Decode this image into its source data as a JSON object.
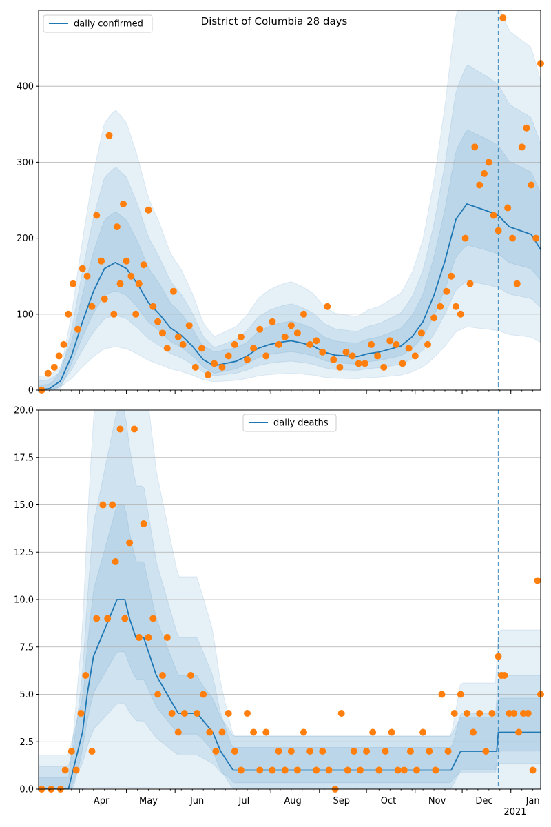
{
  "colors": {
    "line": "#1f77b4",
    "points": "#ff7f0e",
    "band": "#1f77b4",
    "grid": "#b0b0b0"
  },
  "month_labels": [
    "Apr",
    "May",
    "Jun",
    "Jul",
    "Aug",
    "Sep",
    "Oct",
    "Nov",
    "Dec",
    "Jan"
  ],
  "year_label": "2021",
  "chart_data": [
    {
      "type": "line",
      "title": "District of Columbia 28 days",
      "legend": {
        "label": "daily confirmed",
        "position": "top-left"
      },
      "x_range": [
        "2020-03-06",
        "2021-01-20"
      ],
      "ylim": [
        0,
        500
      ],
      "yticks": [
        0,
        100,
        200,
        300,
        400
      ],
      "ytick_labels": [
        "0",
        "100",
        "200",
        "300",
        "400"
      ],
      "grid": true,
      "divider_date": "2020-12-24",
      "series": [
        {
          "kind": "trend",
          "x": [
            "2020-03-06",
            "2020-03-13",
            "2020-03-20",
            "2020-03-27",
            "2020-04-03",
            "2020-04-10",
            "2020-04-17",
            "2020-04-24",
            "2020-05-01",
            "2020-05-08",
            "2020-05-15",
            "2020-05-22",
            "2020-05-29",
            "2020-06-05",
            "2020-06-12",
            "2020-06-19",
            "2020-06-26",
            "2020-07-03",
            "2020-07-10",
            "2020-07-17",
            "2020-07-24",
            "2020-07-31",
            "2020-08-07",
            "2020-08-14",
            "2020-08-21",
            "2020-08-28",
            "2020-09-04",
            "2020-09-11",
            "2020-09-18",
            "2020-09-25",
            "2020-10-02",
            "2020-10-09",
            "2020-10-16",
            "2020-10-23",
            "2020-10-30",
            "2020-11-06",
            "2020-11-13",
            "2020-11-20",
            "2020-11-27",
            "2020-12-04",
            "2020-12-11",
            "2020-12-18",
            "2020-12-24",
            "2020-12-31",
            "2021-01-07",
            "2021-01-14",
            "2021-01-20"
          ],
          "y": [
            0,
            2,
            12,
            45,
            90,
            130,
            160,
            168,
            160,
            140,
            115,
            100,
            82,
            72,
            58,
            40,
            32,
            35,
            38,
            45,
            55,
            60,
            63,
            65,
            62,
            58,
            50,
            46,
            45,
            44,
            48,
            50,
            54,
            58,
            70,
            90,
            125,
            170,
            225,
            245,
            240,
            235,
            230,
            215,
            210,
            205,
            185
          ]
        },
        {
          "kind": "observed",
          "x": [
            "2020-03-08",
            "2020-03-12",
            "2020-03-16",
            "2020-03-19",
            "2020-03-22",
            "2020-03-25",
            "2020-03-28",
            "2020-03-31",
            "2020-04-03",
            "2020-04-06",
            "2020-04-09",
            "2020-04-12",
            "2020-04-15",
            "2020-04-17",
            "2020-04-20",
            "2020-04-23",
            "2020-04-25",
            "2020-04-27",
            "2020-04-29",
            "2020-05-01",
            "2020-05-04",
            "2020-05-07",
            "2020-05-09",
            "2020-05-12",
            "2020-05-15",
            "2020-05-18",
            "2020-05-21",
            "2020-05-24",
            "2020-05-27",
            "2020-05-31",
            "2020-06-03",
            "2020-06-06",
            "2020-06-10",
            "2020-06-14",
            "2020-06-18",
            "2020-06-22",
            "2020-06-26",
            "2020-07-01",
            "2020-07-05",
            "2020-07-09",
            "2020-07-13",
            "2020-07-17",
            "2020-07-21",
            "2020-07-25",
            "2020-07-29",
            "2020-08-02",
            "2020-08-06",
            "2020-08-10",
            "2020-08-14",
            "2020-08-18",
            "2020-08-22",
            "2020-08-26",
            "2020-08-30",
            "2020-09-03",
            "2020-09-06",
            "2020-09-10",
            "2020-09-14",
            "2020-09-18",
            "2020-09-22",
            "2020-09-26",
            "2020-09-30",
            "2020-10-04",
            "2020-10-08",
            "2020-10-12",
            "2020-10-16",
            "2020-10-20",
            "2020-10-24",
            "2020-10-28",
            "2020-11-01",
            "2020-11-05",
            "2020-11-09",
            "2020-11-13",
            "2020-11-17",
            "2020-11-21",
            "2020-11-24",
            "2020-11-27",
            "2020-11-30",
            "2020-12-03",
            "2020-12-06",
            "2020-12-09",
            "2020-12-12",
            "2020-12-15",
            "2020-12-18",
            "2020-12-21",
            "2020-12-24",
            "2020-12-27",
            "2020-12-30",
            "2021-01-02",
            "2021-01-05",
            "2021-01-08",
            "2021-01-11",
            "2021-01-14",
            "2021-01-17",
            "2021-01-20"
          ],
          "y": [
            0,
            22,
            30,
            45,
            60,
            100,
            140,
            80,
            160,
            150,
            110,
            230,
            170,
            120,
            335,
            100,
            215,
            140,
            245,
            170,
            150,
            100,
            140,
            165,
            237,
            110,
            90,
            75,
            55,
            130,
            70,
            60,
            85,
            30,
            55,
            20,
            35,
            30,
            45,
            60,
            70,
            40,
            55,
            80,
            45,
            90,
            60,
            70,
            85,
            75,
            100,
            60,
            65,
            50,
            110,
            40,
            30,
            50,
            45,
            35,
            35,
            60,
            45,
            30,
            65,
            60,
            35,
            55,
            45,
            75,
            60,
            95,
            110,
            130,
            150,
            110,
            100,
            200,
            140,
            320,
            270,
            285,
            300,
            230,
            210,
            490,
            240,
            200,
            140,
            320,
            345,
            270,
            200,
            430
          ]
        }
      ]
    },
    {
      "type": "line",
      "title": "",
      "legend": {
        "label": "daily deaths",
        "position": "top-center"
      },
      "x_range": [
        "2020-03-06",
        "2021-01-20"
      ],
      "ylim": [
        0,
        20
      ],
      "yticks": [
        0,
        2.5,
        5,
        7.5,
        10,
        12.5,
        15,
        17.5,
        20
      ],
      "ytick_labels": [
        "0.0",
        "2.5",
        "5.0",
        "7.5",
        "10.0",
        "12.5",
        "15.0",
        "17.5",
        "20.0"
      ],
      "grid": true,
      "divider_date": "2020-12-24",
      "series": [
        {
          "kind": "trend",
          "x": [
            "2020-03-06",
            "2020-03-25",
            "2020-03-28",
            "2020-04-03",
            "2020-04-06",
            "2020-04-10",
            "2020-04-15",
            "2020-04-20",
            "2020-04-25",
            "2020-04-30",
            "2020-05-03",
            "2020-05-07",
            "2020-05-12",
            "2020-05-20",
            "2020-05-27",
            "2020-06-03",
            "2020-06-07",
            "2020-06-15",
            "2020-06-25",
            "2020-06-30",
            "2020-07-08",
            "2020-08-01",
            "2020-08-25",
            "2020-09-15",
            "2020-10-15",
            "2020-11-01",
            "2020-11-24",
            "2020-11-30",
            "2020-12-23",
            "2020-12-24",
            "2021-01-20"
          ],
          "y": [
            0,
            0,
            1,
            3,
            5,
            7,
            8,
            9,
            10,
            10,
            9,
            8,
            8,
            6,
            5,
            4,
            4,
            4,
            3,
            2,
            1,
            1,
            1,
            1,
            1,
            1,
            1,
            2,
            2,
            3,
            3
          ]
        },
        {
          "kind": "observed",
          "x": [
            "2020-03-08",
            "2020-03-14",
            "2020-03-20",
            "2020-03-23",
            "2020-03-27",
            "2020-03-30",
            "2020-04-02",
            "2020-04-05",
            "2020-04-09",
            "2020-04-12",
            "2020-04-16",
            "2020-04-19",
            "2020-04-22",
            "2020-04-24",
            "2020-04-27",
            "2020-04-30",
            "2020-05-03",
            "2020-05-06",
            "2020-05-09",
            "2020-05-12",
            "2020-05-15",
            "2020-05-18",
            "2020-05-21",
            "2020-05-24",
            "2020-05-27",
            "2020-05-30",
            "2020-06-03",
            "2020-06-07",
            "2020-06-11",
            "2020-06-15",
            "2020-06-19",
            "2020-06-23",
            "2020-06-27",
            "2020-07-01",
            "2020-07-05",
            "2020-07-09",
            "2020-07-13",
            "2020-07-17",
            "2020-07-21",
            "2020-07-25",
            "2020-07-29",
            "2020-08-02",
            "2020-08-06",
            "2020-08-10",
            "2020-08-14",
            "2020-08-18",
            "2020-08-22",
            "2020-08-26",
            "2020-08-30",
            "2020-09-03",
            "2020-09-07",
            "2020-09-11",
            "2020-09-15",
            "2020-09-19",
            "2020-09-23",
            "2020-09-27",
            "2020-10-01",
            "2020-10-05",
            "2020-10-09",
            "2020-10-13",
            "2020-10-17",
            "2020-10-21",
            "2020-10-25",
            "2020-10-29",
            "2020-11-02",
            "2020-11-06",
            "2020-11-10",
            "2020-11-14",
            "2020-11-18",
            "2020-11-22",
            "2020-11-26",
            "2020-11-30",
            "2020-12-04",
            "2020-12-08",
            "2020-12-12",
            "2020-12-16",
            "2020-12-20",
            "2020-12-24",
            "2020-12-26",
            "2020-12-28",
            "2020-12-31",
            "2021-01-03",
            "2021-01-06",
            "2021-01-09",
            "2021-01-12",
            "2021-01-15",
            "2021-01-18",
            "2021-01-20"
          ],
          "y": [
            0,
            0,
            0,
            1,
            2,
            1,
            4,
            6,
            2,
            9,
            15,
            9,
            15,
            12,
            19,
            9,
            13,
            19,
            8,
            14,
            8,
            9,
            5,
            6,
            8,
            4,
            3,
            4,
            6,
            4,
            5,
            3,
            2,
            3,
            4,
            2,
            1,
            4,
            3,
            1,
            3,
            1,
            2,
            1,
            2,
            1,
            3,
            2,
            1,
            2,
            1,
            0,
            4,
            1,
            2,
            1,
            2,
            3,
            1,
            2,
            3,
            1,
            1,
            2,
            1,
            3,
            2,
            1,
            5,
            2,
            4,
            5,
            4,
            3,
            4,
            2,
            4,
            7,
            6,
            6,
            4,
            4,
            3,
            4,
            4,
            1,
            11,
            5
          ]
        }
      ]
    }
  ]
}
